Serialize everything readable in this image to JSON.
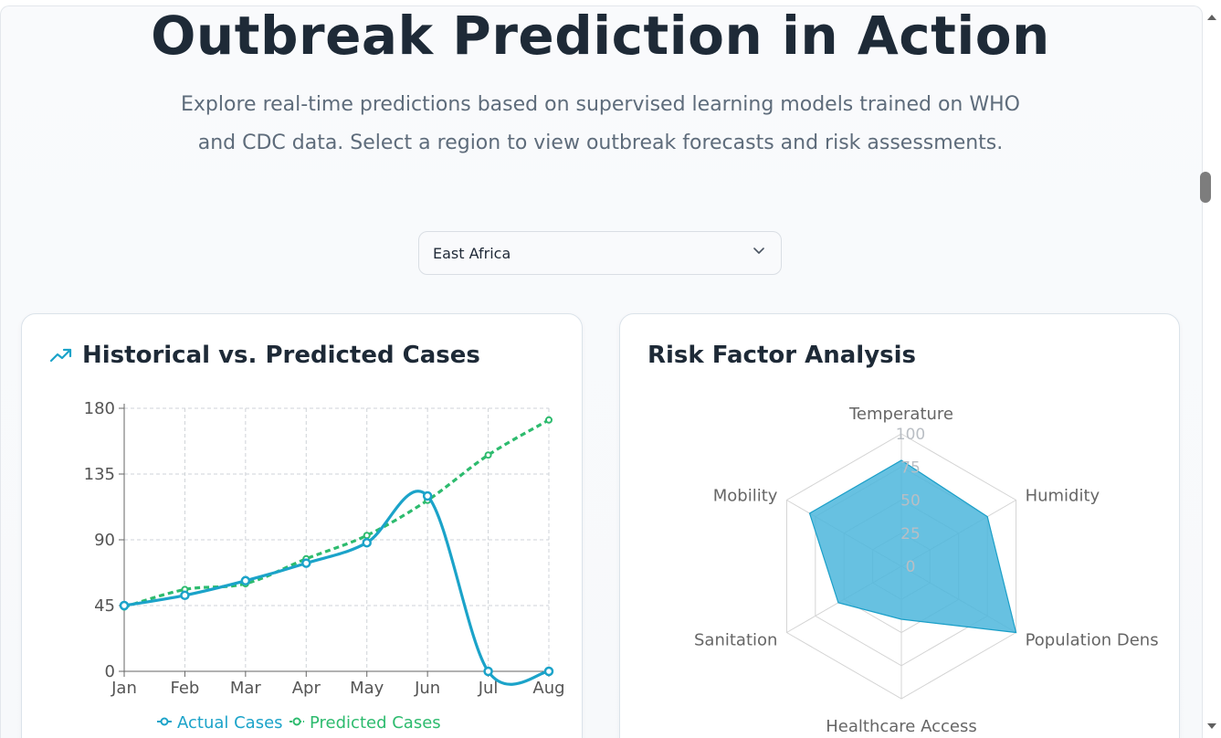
{
  "header": {
    "title": "Outbreak Prediction in Action",
    "subtitle": "Explore real-time predictions based on supervised learning models trained on WHO and CDC data. Select a region to view outbreak forecasts and risk assessments."
  },
  "region_select": {
    "selected": "East Africa"
  },
  "cards": {
    "history": {
      "title": "Historical vs. Predicted Cases",
      "icon": "trending-up-icon"
    },
    "risk": {
      "title": "Risk Factor Analysis"
    }
  },
  "colors": {
    "actual": "#1ba3c9",
    "predicted": "#2dbb6e",
    "radar_fill": "#4cb6dc",
    "title": "#1e2a37"
  },
  "chart_data": [
    {
      "type": "line",
      "title": "Historical vs. Predicted Cases",
      "categories": [
        "Jan",
        "Feb",
        "Mar",
        "Apr",
        "May",
        "Jun",
        "Jul",
        "Aug"
      ],
      "ylim": [
        0,
        180
      ],
      "yticks": [
        "0",
        "45",
        "90",
        "135",
        "180"
      ],
      "grid": true,
      "legend": "bottom",
      "series": [
        {
          "name": "Actual Cases",
          "values": [
            45,
            52,
            62,
            74,
            88,
            120,
            0,
            0
          ]
        },
        {
          "name": "Predicted Cases",
          "values": [
            44,
            56,
            60,
            77,
            93,
            117,
            148,
            172
          ]
        }
      ]
    },
    {
      "type": "radar",
      "title": "Risk Factor Analysis",
      "categories": [
        "Temperature",
        "Humidity",
        "Population Dens",
        "Healthcare Access",
        "Sanitation",
        "Mobility"
      ],
      "rlim": [
        0,
        100
      ],
      "rticks": [
        "0",
        "25",
        "50",
        "75",
        "100"
      ],
      "values": [
        80,
        75,
        100,
        40,
        55,
        80
      ]
    }
  ],
  "scrollbar": {
    "up_icon": "scroll-up-arrow-icon",
    "down_icon": "scroll-down-arrow-icon"
  }
}
